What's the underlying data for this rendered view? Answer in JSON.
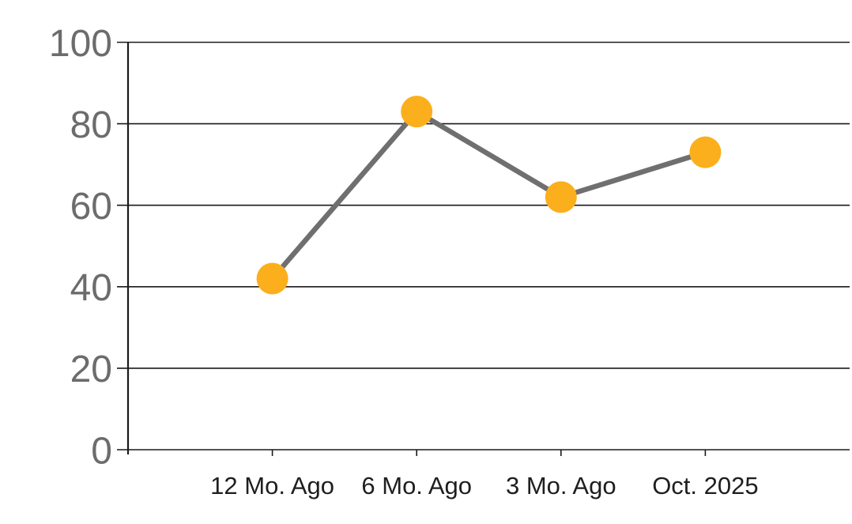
{
  "chart_data": {
    "type": "line",
    "categories": [
      "12 Mo. Ago",
      "6 Mo. Ago",
      "3 Mo. Ago",
      "Oct. 2025"
    ],
    "values": [
      42,
      83,
      62,
      73
    ],
    "title": "",
    "xlabel": "",
    "ylabel": "",
    "ylim": [
      0,
      100
    ],
    "yticks": [
      0,
      20,
      40,
      60,
      80,
      100
    ],
    "grid": true,
    "legend": null,
    "colors": {
      "marker": "#FBAF1C",
      "line": "#6F6F6F",
      "gridline": "#1A1A1A",
      "axis": "#1A1A1A",
      "ytick_label": "#6C6C6C",
      "xtick_label": "#1E1E1E",
      "background": "#FFFFFF"
    }
  }
}
